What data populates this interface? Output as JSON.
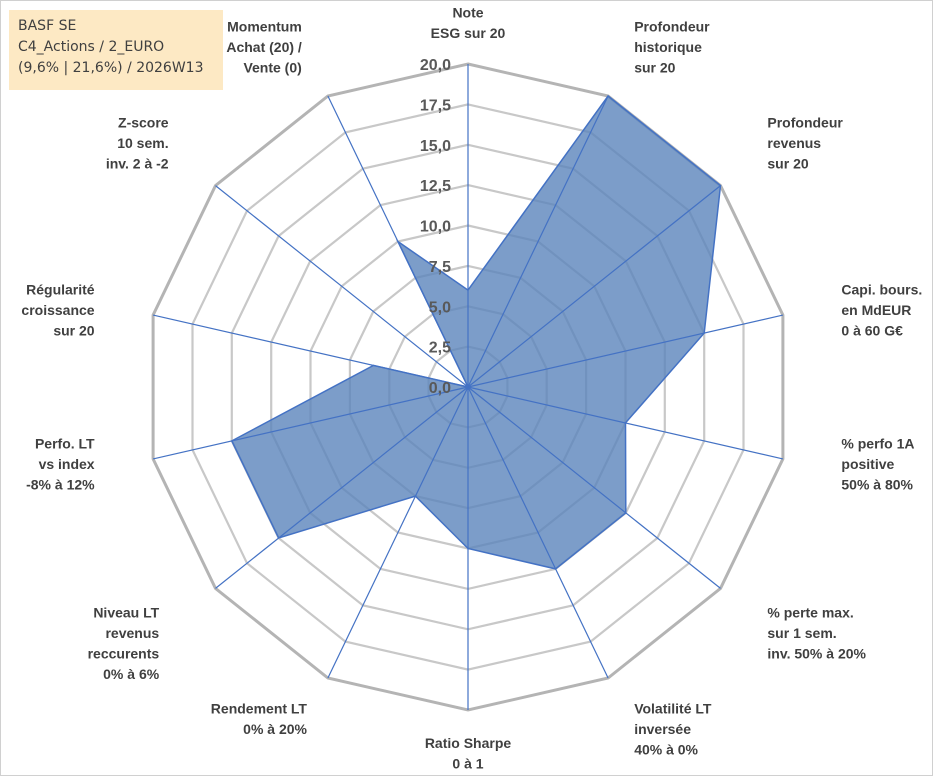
{
  "info_box": {
    "line1": "BASF SE",
    "line2": "C4_Actions / 2_EURO",
    "line3": "(9,6% | 21,6%) / 2026W13"
  },
  "colors": {
    "area_fill": "#5b85bb",
    "area_stroke": "#4472c4",
    "spoke": "#4472c4",
    "grid": "#c8c8c8",
    "outer_ring": "#b4b4b4",
    "info_bg": "#fde9c4"
  },
  "chart_data": {
    "type": "radar",
    "title": "",
    "r_range": [
      0,
      20
    ],
    "ticks": [
      "0,0",
      "2,5",
      "5,0",
      "7,5",
      "10,0",
      "12,5",
      "15,0",
      "17,5",
      "20,0"
    ],
    "tick_values": [
      0,
      2.5,
      5,
      7.5,
      10,
      12.5,
      15,
      17.5,
      20
    ],
    "axes": [
      {
        "label": [
          "Note",
          "ESG sur 20"
        ],
        "value": 6
      },
      {
        "label": [
          "Profondeur",
          "historique",
          "sur 20"
        ],
        "value": 20
      },
      {
        "label": [
          "Profondeur",
          "revenus",
          "sur 20"
        ],
        "value": 20
      },
      {
        "label": [
          "Capi. bours.",
          "en MdEUR",
          "0 à 60 G€"
        ],
        "value": 15
      },
      {
        "label": [
          "% perfo 1A",
          "positive",
          "50% à 80%"
        ],
        "value": 10
      },
      {
        "label": [
          "% perte max.",
          "sur 1 sem.",
          "inv. 50% à 20%"
        ],
        "value": 12.5
      },
      {
        "label": [
          "Volatilité LT",
          "inversée",
          "40% à 0%"
        ],
        "value": 12.5
      },
      {
        "label": [
          "Ratio Sharpe",
          "0 à 1"
        ],
        "value": 10
      },
      {
        "label": [
          "Rendement LT",
          "0% à 20%"
        ],
        "value": 7.5
      },
      {
        "label": [
          "Niveau LT",
          "revenus",
          "reccurents",
          "0% à 6%"
        ],
        "value": 15
      },
      {
        "label": [
          "Perfo. LT",
          "vs index",
          "-8% à 12%"
        ],
        "value": 15
      },
      {
        "label": [
          "Régularité",
          "croissance",
          "sur 20"
        ],
        "value": 6
      },
      {
        "label": [
          "Z-score",
          "10 sem.",
          "inv. 2 à -2"
        ],
        "value": 0
      },
      {
        "label": [
          "Momentum",
          "Achat (20) /",
          "Vente (0)"
        ],
        "value": 10
      }
    ]
  }
}
